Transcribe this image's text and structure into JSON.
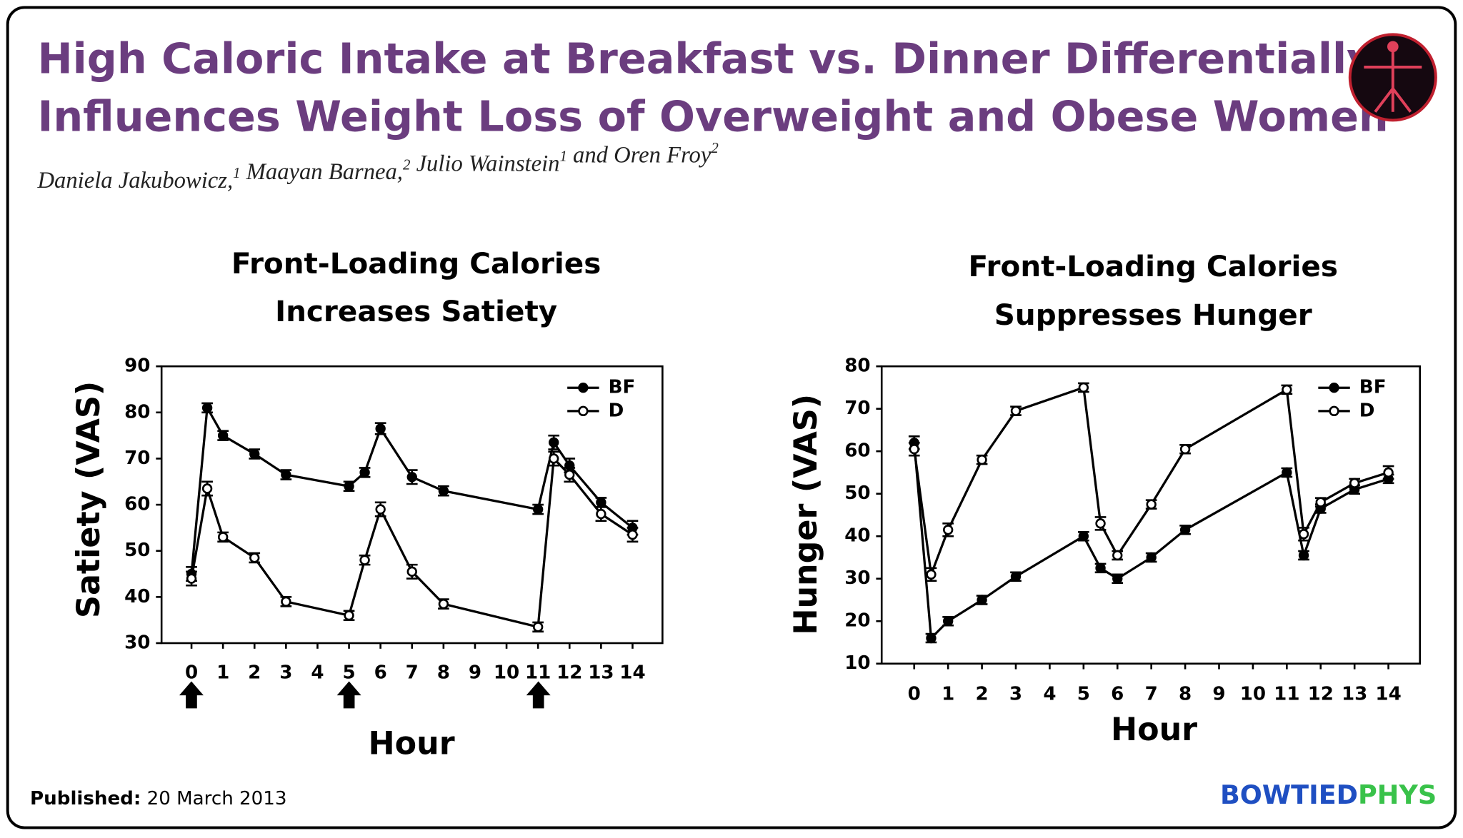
{
  "header": {
    "title": [
      "High Caloric Intake at Breakfast vs. Dinner Differentially",
      "Influences Weight Loss of Overweight and Obese Women"
    ],
    "authors": [
      {
        "name": "Daniela Jakubowicz,",
        "sup": "1"
      },
      {
        "name": "Maayan Barnea,",
        "sup": "2"
      },
      {
        "name": "Julio Wainstein",
        "sup": "1"
      },
      {
        "name": "and Oren Froy",
        "sup": "2"
      }
    ]
  },
  "chart_data": [
    {
      "type": "line",
      "title": [
        "Front-Loading Calories",
        "Increases Satiety"
      ],
      "xlabel": "Hour",
      "ylabel": "Satiety (VAS)",
      "x": [
        0,
        0.5,
        1,
        2,
        3,
        5,
        5.5,
        6,
        7,
        8,
        11,
        11.5,
        12,
        13,
        14
      ],
      "xlim": [
        -0.95,
        14.95
      ],
      "xticks": [
        0,
        1,
        2,
        3,
        4,
        5,
        6,
        7,
        8,
        9,
        10,
        11,
        12,
        13,
        14
      ],
      "ylim": [
        30,
        90
      ],
      "yticks": [
        30,
        40,
        50,
        60,
        70,
        80,
        90
      ],
      "series": [
        {
          "name": "BF",
          "color": "#000000",
          "marker": "filled",
          "values": [
            45,
            81,
            75,
            71,
            66.5,
            64,
            67,
            76.5,
            66,
            63,
            59,
            73.5,
            68.5,
            60.5,
            55
          ],
          "errors": [
            1.5,
            1,
            1,
            1,
            1,
            1,
            1,
            1.2,
            1.5,
            1,
            1,
            1.5,
            1.5,
            1,
            1.5
          ]
        },
        {
          "name": "D",
          "color": "#000000",
          "marker": "open",
          "values": [
            44,
            63.5,
            53,
            48.5,
            39,
            36,
            48,
            59,
            45.5,
            38.5,
            33.5,
            70,
            66.5,
            58,
            53.5
          ],
          "errors": [
            1.5,
            1.5,
            1,
            1,
            1,
            1,
            1,
            1.5,
            1.5,
            1,
            1,
            1.5,
            1.5,
            1.5,
            1.5
          ]
        }
      ]
    },
    {
      "type": "line",
      "title": [
        "Front-Loading Calories",
        "Suppresses Hunger"
      ],
      "xlabel": "Hour",
      "ylabel": "Hunger (VAS)",
      "x": [
        0,
        0.5,
        1,
        2,
        3,
        5,
        5.5,
        6,
        7,
        8,
        11,
        11.5,
        12,
        13,
        14
      ],
      "xlim": [
        -0.96,
        14.93
      ],
      "xticks": [
        0,
        1,
        2,
        3,
        4,
        5,
        6,
        7,
        8,
        9,
        10,
        11,
        12,
        13,
        14
      ],
      "ylim": [
        10,
        80
      ],
      "yticks": [
        10,
        20,
        30,
        40,
        50,
        60,
        70,
        80
      ],
      "series": [
        {
          "name": "BF",
          "color": "#000000",
          "marker": "filled",
          "values": [
            62,
            16,
            20,
            25,
            30.5,
            40,
            32.5,
            30,
            35,
            41.5,
            55,
            35.5,
            46.5,
            51,
            53.5
          ],
          "errors": [
            1.5,
            1,
            1,
            1,
            1,
            1,
            1,
            1,
            1,
            1,
            1,
            1,
            1,
            1,
            1
          ]
        },
        {
          "name": "D",
          "color": "#000000",
          "marker": "open",
          "values": [
            60.5,
            31,
            41.5,
            58,
            69.5,
            75,
            43,
            35.5,
            47.5,
            60.5,
            74.5,
            40.5,
            48,
            52.5,
            55
          ],
          "errors": [
            1.5,
            1.5,
            1.5,
            1,
            1,
            1,
            1.5,
            1,
            1,
            1,
            1,
            1.5,
            1,
            1,
            1.5
          ]
        }
      ]
    }
  ],
  "footer": {
    "published_label": "Published:",
    "published_date": "20 March 2013",
    "brand": [
      "BOWTIED",
      "PHYS"
    ]
  }
}
